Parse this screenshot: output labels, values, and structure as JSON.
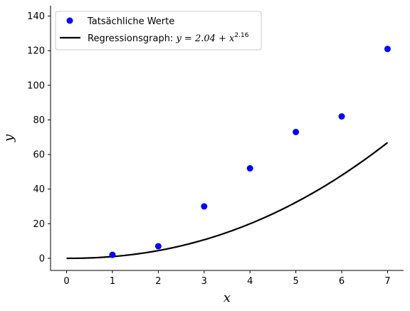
{
  "chart_data": {
    "type": "scatter",
    "xlabel": "x",
    "ylabel": "y",
    "xlim": [
      -0.35,
      7.35
    ],
    "ylim": [
      -7,
      146
    ],
    "xticks": [
      0,
      1,
      2,
      3,
      4,
      5,
      6,
      7
    ],
    "yticks": [
      0,
      20,
      40,
      60,
      80,
      100,
      120,
      140
    ],
    "legend_position": "top-left",
    "points": {
      "name": "Tatsächliche Werte",
      "color": "#0000ff",
      "x": [
        1,
        2,
        3,
        4,
        5,
        6,
        7
      ],
      "y": [
        2,
        7,
        30,
        52,
        73,
        82,
        121
      ]
    },
    "curve": {
      "name_prefix": "Regressionsgraph: ",
      "name_formula": "y = 2.04 + x",
      "name_exponent": "2.16",
      "color": "#000000",
      "coefficient": 2.04,
      "exponent": 2.16,
      "x_range": [
        0,
        7
      ]
    }
  }
}
